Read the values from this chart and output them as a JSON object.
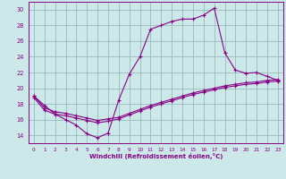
{
  "xlabel": "Windchill (Refroidissement éolien,°C)",
  "xlim": [
    -0.5,
    23.5
  ],
  "ylim": [
    13.0,
    31.0
  ],
  "yticks": [
    14,
    16,
    18,
    20,
    22,
    24,
    26,
    28,
    30
  ],
  "xticks": [
    0,
    1,
    2,
    3,
    4,
    5,
    6,
    7,
    8,
    9,
    10,
    11,
    12,
    13,
    14,
    15,
    16,
    17,
    18,
    19,
    20,
    21,
    22,
    23
  ],
  "background_color": "#cce8e8",
  "line_color": "#880088",
  "grid_color": "#99bbbb",
  "line1_x": [
    0,
    1,
    2,
    3,
    4,
    5,
    6,
    7,
    8,
    9,
    10,
    11,
    12,
    13,
    14,
    15,
    16,
    17,
    18,
    19,
    20,
    21,
    22,
    23
  ],
  "line1_y": [
    19.0,
    17.8,
    16.7,
    16.0,
    15.3,
    14.2,
    13.7,
    14.3,
    18.5,
    21.8,
    24.0,
    27.5,
    28.0,
    28.5,
    28.8,
    28.8,
    29.3,
    30.2,
    24.5,
    22.3,
    21.9,
    22.0,
    21.5,
    21.0
  ],
  "line2_x": [
    0,
    1,
    2,
    3,
    4,
    5,
    6,
    7,
    8,
    9,
    10,
    11,
    12,
    13,
    14,
    15,
    16,
    17,
    18,
    19,
    20,
    21,
    22,
    23
  ],
  "line2_y": [
    19.0,
    17.5,
    17.0,
    16.8,
    16.5,
    16.2,
    15.9,
    16.1,
    16.3,
    16.8,
    17.3,
    17.8,
    18.2,
    18.6,
    19.0,
    19.4,
    19.7,
    20.0,
    20.3,
    20.5,
    20.7,
    20.8,
    21.0,
    21.1
  ],
  "line3_x": [
    0,
    1,
    2,
    3,
    4,
    5,
    6,
    7,
    8,
    9,
    10,
    11,
    12,
    13,
    14,
    15,
    16,
    17,
    18,
    19,
    20,
    21,
    22,
    23
  ],
  "line3_y": [
    18.8,
    17.2,
    16.7,
    16.5,
    16.2,
    15.9,
    15.6,
    15.8,
    16.1,
    16.6,
    17.1,
    17.6,
    18.0,
    18.4,
    18.8,
    19.2,
    19.5,
    19.8,
    20.1,
    20.3,
    20.5,
    20.6,
    20.8,
    20.9
  ]
}
